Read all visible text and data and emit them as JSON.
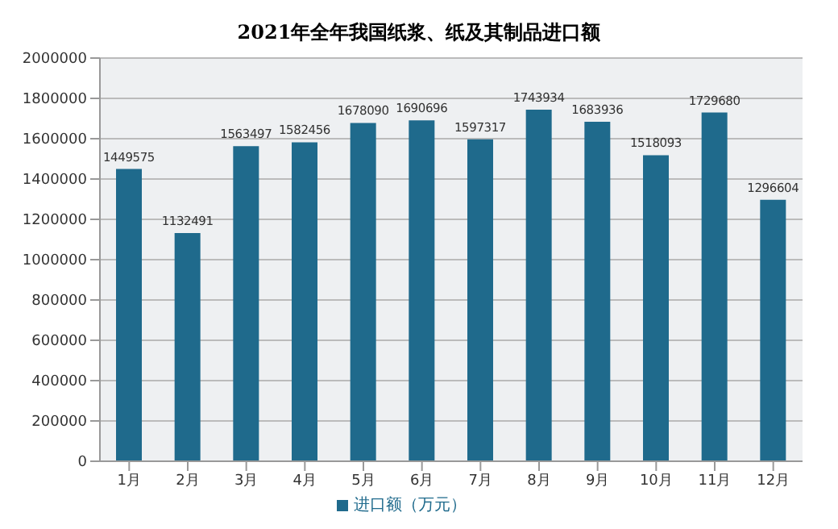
{
  "chart_data": {
    "type": "bar",
    "title": "2021年全年我国纸浆、纸及其制品进口额",
    "categories": [
      "1月",
      "2月",
      "3月",
      "4月",
      "5月",
      "6月",
      "7月",
      "8月",
      "9月",
      "10月",
      "11月",
      "12月"
    ],
    "series": [
      {
        "name": "进口额（万元）",
        "color": "#1f6a8c",
        "values": [
          1449575,
          1132491,
          1563497,
          1582456,
          1678090,
          1690696,
          1597317,
          1743934,
          1683936,
          1518093,
          1729680,
          1296604
        ]
      }
    ],
    "ylim": [
      0,
      2000000
    ],
    "yticks": [
      0,
      200000,
      400000,
      600000,
      800000,
      1000000,
      1200000,
      1400000,
      1600000,
      1800000,
      2000000
    ],
    "grid": "y",
    "legend": "bottom",
    "data_labels": true
  }
}
